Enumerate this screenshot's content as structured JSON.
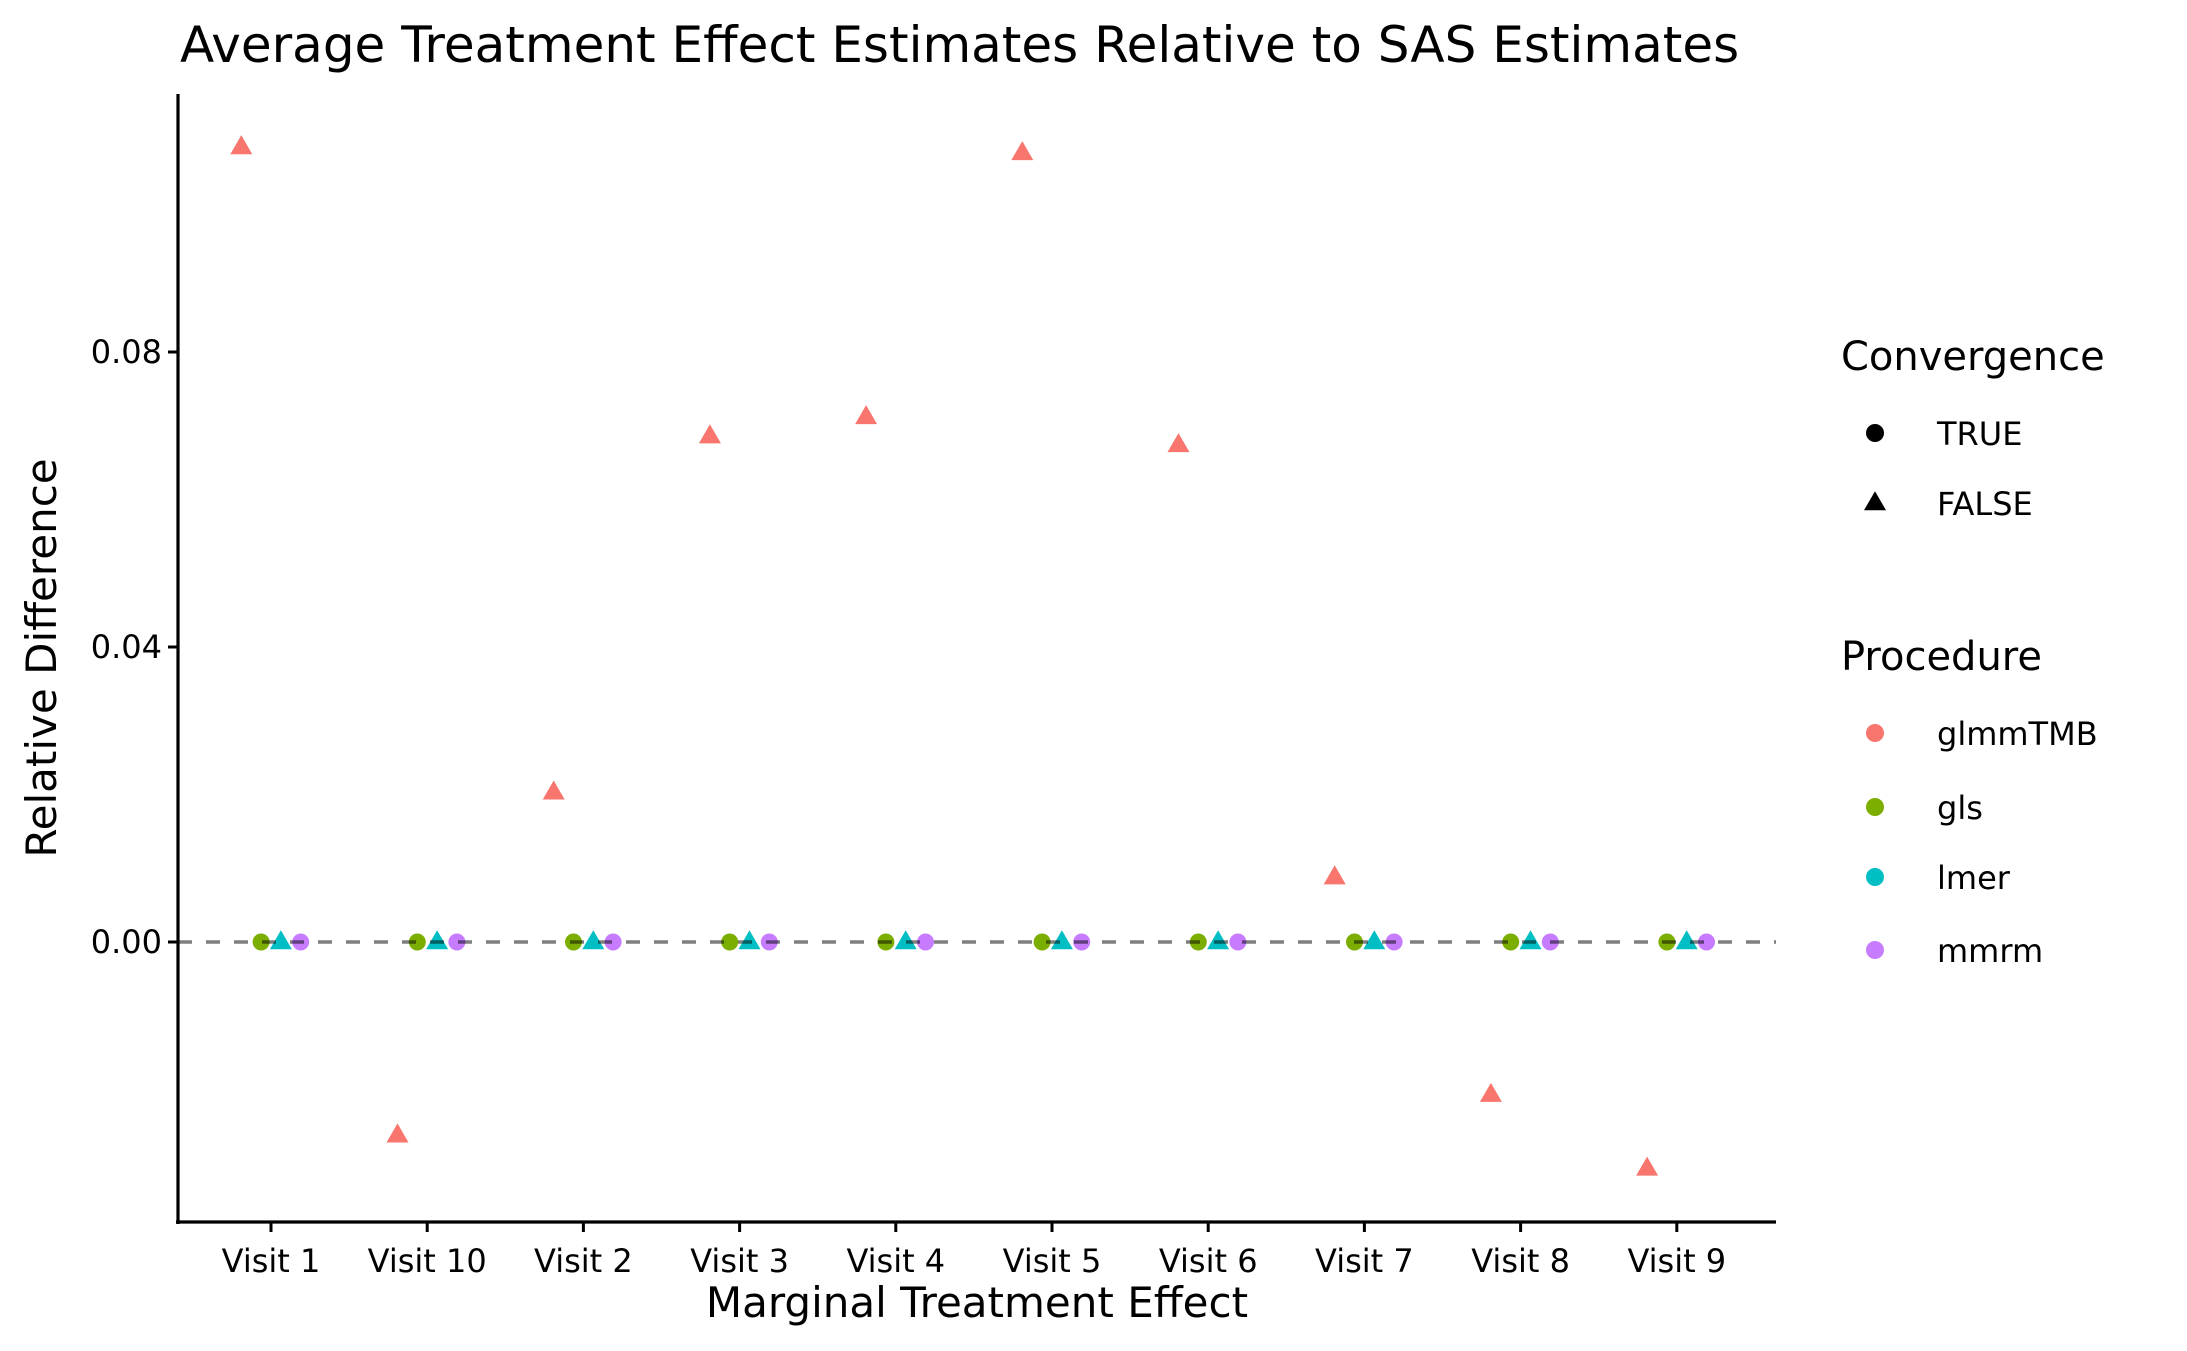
{
  "chart_data": {
    "type": "scatter",
    "title": "Average Treatment Effect Estimates Relative to SAS Estimates",
    "xlabel": "Marginal Treatment Effect",
    "ylabel": "Relative Difference",
    "categories": [
      "Visit 1",
      "Visit 10",
      "Visit 2",
      "Visit 3",
      "Visit 4",
      "Visit 5",
      "Visit 6",
      "Visit 7",
      "Visit 8",
      "Visit 9"
    ],
    "ylim": [
      -0.038,
      0.115
    ],
    "yticks": [
      {
        "value": 0.0,
        "label": "0.00"
      },
      {
        "value": 0.04,
        "label": "0.04"
      },
      {
        "value": 0.08,
        "label": "0.08"
      }
    ],
    "grid": false,
    "reference_line": {
      "y": 0,
      "style": "dashed",
      "color": "#7f7f7f"
    },
    "dodge": true,
    "series": [
      {
        "name": "glmmTMB",
        "color": "#F8766D",
        "convergence": [
          false,
          false,
          false,
          false,
          false,
          false,
          false,
          false,
          false,
          false
        ],
        "values": [
          0.1078,
          -0.0262,
          0.0203,
          0.0686,
          0.0712,
          0.107,
          0.0674,
          0.0088,
          -0.0207,
          -0.0307
        ]
      },
      {
        "name": "gls",
        "color": "#7CAE00",
        "convergence": [
          true,
          true,
          true,
          true,
          true,
          true,
          true,
          true,
          true,
          true
        ],
        "values": [
          0,
          0,
          0,
          0,
          0,
          0,
          0,
          0,
          0,
          0
        ]
      },
      {
        "name": "lmer",
        "color": "#00BFC4",
        "convergence": [
          false,
          false,
          false,
          false,
          false,
          false,
          false,
          false,
          false,
          false
        ],
        "values": [
          0,
          0,
          0,
          0,
          0,
          0,
          0,
          0,
          0,
          0
        ]
      },
      {
        "name": "mmrm",
        "color": "#C77CFF",
        "convergence": [
          true,
          true,
          true,
          true,
          true,
          true,
          true,
          true,
          true,
          true
        ],
        "values": [
          0,
          0,
          0,
          0,
          0,
          0,
          0,
          0,
          0,
          0
        ]
      }
    ],
    "legends": [
      {
        "title": "Convergence",
        "position": "right",
        "entries": [
          {
            "label": "TRUE",
            "shape": "circle",
            "color": "#000000"
          },
          {
            "label": "FALSE",
            "shape": "triangle",
            "color": "#000000"
          }
        ]
      },
      {
        "title": "Procedure",
        "position": "right",
        "entries": [
          {
            "label": "glmmTMB",
            "shape": "circle",
            "color": "#F8766D"
          },
          {
            "label": "gls",
            "shape": "circle",
            "color": "#7CAE00"
          },
          {
            "label": "lmer",
            "shape": "circle",
            "color": "#00BFC4"
          },
          {
            "label": "mmrm",
            "shape": "circle",
            "color": "#C77CFF"
          }
        ]
      }
    ]
  }
}
